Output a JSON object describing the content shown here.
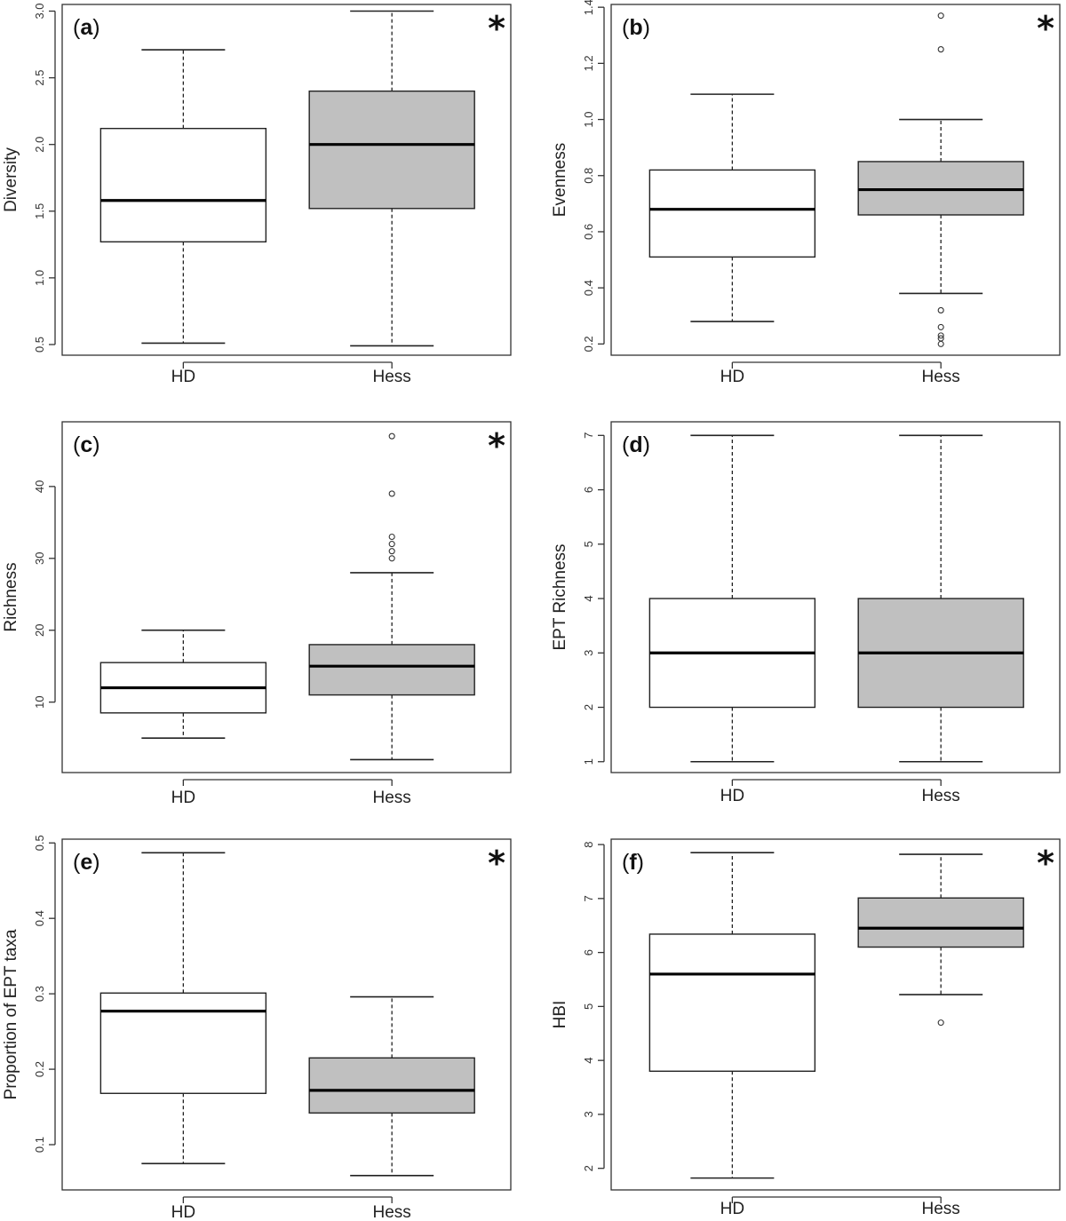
{
  "colors": {
    "hd_fill": "#ffffff",
    "hess_fill": "#c0c0c0",
    "stroke": "#222222"
  },
  "chart_data": [
    {
      "panel_label": "a",
      "significance_marker": "*",
      "type": "box",
      "ylabel": "Diversity",
      "categories": [
        "HD",
        "Hess"
      ],
      "ylim": [
        0.42,
        3.05
      ],
      "yticks": [
        0.5,
        1.0,
        1.5,
        2.0,
        2.5,
        3.0
      ],
      "ytick_labels": [
        "0.5",
        "1.0",
        "1.5",
        "2.0",
        "2.5",
        "3.0"
      ],
      "boxes": [
        {
          "name": "HD",
          "fill": "#ffffff",
          "whislo": 0.51,
          "q1": 1.27,
          "med": 1.58,
          "q3": 2.12,
          "whishi": 2.71,
          "outliers": []
        },
        {
          "name": "Hess",
          "fill": "#c0c0c0",
          "whislo": 0.49,
          "q1": 1.52,
          "med": 2.0,
          "q3": 2.4,
          "whishi": 3.0,
          "outliers": []
        }
      ]
    },
    {
      "panel_label": "b",
      "significance_marker": "*",
      "type": "box",
      "ylabel": "Evenness",
      "categories": [
        "HD",
        "Hess"
      ],
      "ylim": [
        0.16,
        1.41
      ],
      "yticks": [
        0.2,
        0.4,
        0.6,
        0.8,
        1.0,
        1.2,
        1.4
      ],
      "ytick_labels": [
        "0.2",
        "0.4",
        "0.6",
        "0.8",
        "1.0",
        "1.2",
        "1.4"
      ],
      "boxes": [
        {
          "name": "HD",
          "fill": "#ffffff",
          "whislo": 0.28,
          "q1": 0.51,
          "med": 0.68,
          "q3": 0.82,
          "whishi": 1.09,
          "outliers": []
        },
        {
          "name": "Hess",
          "fill": "#c0c0c0",
          "whislo": 0.38,
          "q1": 0.66,
          "med": 0.75,
          "q3": 0.85,
          "whishi": 1.0,
          "outliers": [
            0.32,
            0.26,
            0.23,
            0.22,
            0.2,
            1.25,
            1.37
          ]
        }
      ]
    },
    {
      "panel_label": "c",
      "significance_marker": "*",
      "type": "box",
      "ylabel": "Richness",
      "categories": [
        "HD",
        "Hess"
      ],
      "ylim": [
        0.2,
        49
      ],
      "yticks": [
        10,
        20,
        30,
        40
      ],
      "ytick_labels": [
        "10",
        "20",
        "30",
        "40"
      ],
      "boxes": [
        {
          "name": "HD",
          "fill": "#ffffff",
          "whislo": 5,
          "q1": 8.5,
          "med": 12,
          "q3": 15.5,
          "whishi": 20,
          "outliers": []
        },
        {
          "name": "Hess",
          "fill": "#c0c0c0",
          "whislo": 2,
          "q1": 11,
          "med": 15,
          "q3": 18,
          "whishi": 28,
          "outliers": [
            30,
            31,
            32,
            33,
            39,
            47
          ]
        }
      ]
    },
    {
      "panel_label": "d",
      "significance_marker": "",
      "type": "box",
      "ylabel": "EPT Richness",
      "categories": [
        "HD",
        "Hess"
      ],
      "ylim": [
        0.8,
        7.25
      ],
      "yticks": [
        1,
        2,
        3,
        4,
        5,
        6,
        7
      ],
      "ytick_labels": [
        "1",
        "2",
        "3",
        "4",
        "5",
        "6",
        "7"
      ],
      "boxes": [
        {
          "name": "HD",
          "fill": "#ffffff",
          "whislo": 1,
          "q1": 2,
          "med": 3,
          "q3": 4,
          "whishi": 7,
          "outliers": []
        },
        {
          "name": "Hess",
          "fill": "#c0c0c0",
          "whislo": 1,
          "q1": 2,
          "med": 3,
          "q3": 4,
          "whishi": 7,
          "outliers": []
        }
      ]
    },
    {
      "panel_label": "e",
      "significance_marker": "*",
      "type": "box",
      "ylabel": "Proportion of EPT taxa",
      "categories": [
        "HD",
        "Hess"
      ],
      "ylim": [
        0.04,
        0.505
      ],
      "yticks": [
        0.1,
        0.2,
        0.3,
        0.4,
        0.5
      ],
      "ytick_labels": [
        "0.1",
        "0.2",
        "0.3",
        "0.4",
        "0.5"
      ],
      "boxes": [
        {
          "name": "HD",
          "fill": "#ffffff",
          "whislo": 0.075,
          "q1": 0.168,
          "med": 0.277,
          "q3": 0.301,
          "whishi": 0.487,
          "outliers": []
        },
        {
          "name": "Hess",
          "fill": "#c0c0c0",
          "whislo": 0.059,
          "q1": 0.142,
          "med": 0.172,
          "q3": 0.215,
          "whishi": 0.296,
          "outliers": []
        }
      ]
    },
    {
      "panel_label": "f",
      "significance_marker": "*",
      "type": "box",
      "ylabel": "HBI",
      "categories": [
        "HD",
        "Hess"
      ],
      "ylim": [
        1.6,
        8.1
      ],
      "yticks": [
        2,
        3,
        4,
        5,
        6,
        7,
        8
      ],
      "ytick_labels": [
        "2",
        "3",
        "4",
        "5",
        "6",
        "7",
        "8"
      ],
      "boxes": [
        {
          "name": "HD",
          "fill": "#ffffff",
          "whislo": 1.82,
          "q1": 3.8,
          "med": 5.6,
          "q3": 6.34,
          "whishi": 7.85,
          "outliers": []
        },
        {
          "name": "Hess",
          "fill": "#c0c0c0",
          "whislo": 5.22,
          "q1": 6.1,
          "med": 6.45,
          "q3": 7.01,
          "whishi": 7.82,
          "outliers": [
            4.7
          ]
        }
      ]
    }
  ]
}
